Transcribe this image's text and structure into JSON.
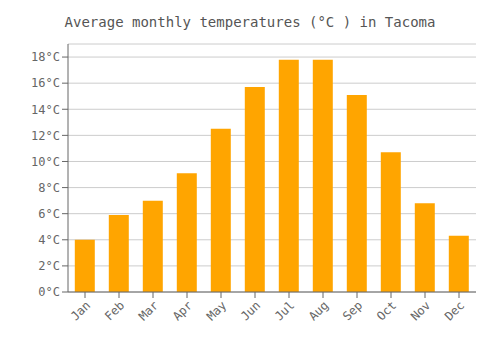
{
  "chart_data": {
    "type": "bar",
    "title": "Average monthly temperatures (°C ) in Tacoma",
    "categories": [
      "Jan",
      "Feb",
      "Mar",
      "Apr",
      "May",
      "Jun",
      "Jul",
      "Aug",
      "Sep",
      "Oct",
      "Nov",
      "Dec"
    ],
    "values": [
      4.0,
      5.9,
      7.0,
      9.1,
      12.5,
      15.7,
      17.8,
      17.8,
      15.1,
      10.7,
      6.8,
      4.3
    ],
    "color": "#FFA500",
    "ylim": [
      0,
      19
    ],
    "yticks": [
      {
        "value": 0,
        "label": "0°C"
      },
      {
        "value": 2,
        "label": "2°C"
      },
      {
        "value": 4,
        "label": "4°C"
      },
      {
        "value": 6,
        "label": "6°C"
      },
      {
        "value": 8,
        "label": "8°C"
      },
      {
        "value": 10,
        "label": "10°C"
      },
      {
        "value": 12,
        "label": "12°C"
      },
      {
        "value": 14,
        "label": "14°C"
      },
      {
        "value": 16,
        "label": "16°C"
      },
      {
        "value": 18,
        "label": "18°C"
      }
    ],
    "grid": true
  }
}
